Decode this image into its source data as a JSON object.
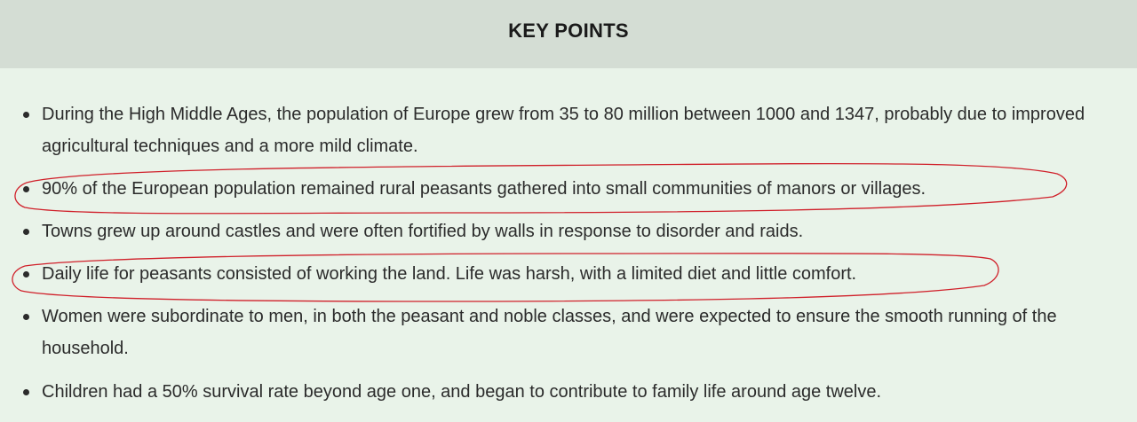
{
  "title": "KEY POINTS",
  "points": [
    "During the High Middle Ages, the population of Europe grew from 35 to 80 million between 1000 and 1347, probably due to improved agricultural techniques and a more mild climate.",
    "90% of the European population remained rural peasants gathered into small communities of manors or villages.",
    "Towns grew up around castles and were often fortified by walls in response to disorder and raids.",
    "Daily life for peasants consisted of working the land. Life was harsh, with a limited diet and little comfort.",
    "Women were subordinate to men, in both the peasant and noble classes, and were expected to ensure the smooth running of the household.",
    "Children had a 50% survival rate beyond age one, and began to contribute to family life around age twelve."
  ],
  "colors": {
    "header_bg": "#d4ddd4",
    "body_bg": "#e9f3e9",
    "text": "#2b2b2b",
    "annotation": "#d0202a"
  }
}
